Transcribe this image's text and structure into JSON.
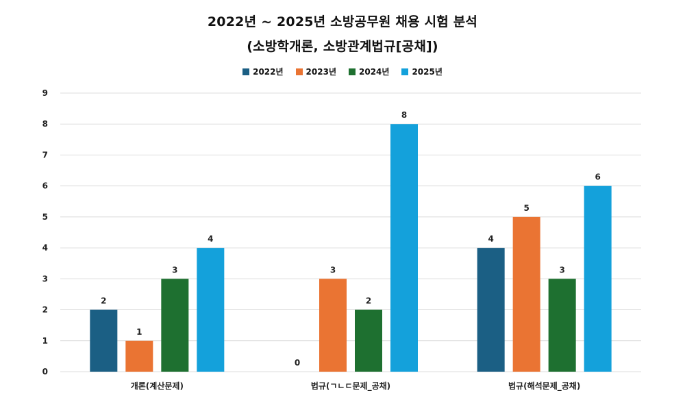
{
  "chart_data": {
    "type": "bar",
    "title": "2022년 ~ 2025년 소방공무원 채용 시험 분석",
    "subtitle": "(소방학개론, 소방관계법규[공채])",
    "categories": [
      "개론(계산문제)",
      "법규(ㄱㄴㄷ문제_공채)",
      "법규(해석문제_공채)"
    ],
    "series": [
      {
        "name": "2022년",
        "color": "#1b5f84",
        "values": [
          2,
          0,
          4
        ]
      },
      {
        "name": "2023년",
        "color": "#ea7433",
        "values": [
          1,
          3,
          5
        ]
      },
      {
        "name": "2024년",
        "color": "#1e7030",
        "values": [
          3,
          2,
          3
        ]
      },
      {
        "name": "2025년",
        "color": "#14a1db",
        "values": [
          4,
          8,
          6
        ]
      }
    ],
    "ylim": [
      0,
      9
    ],
    "yticks": [
      "0",
      "1",
      "2",
      "3",
      "4",
      "5",
      "6",
      "7",
      "8",
      "9"
    ],
    "grid": true,
    "legend_position": "top"
  }
}
